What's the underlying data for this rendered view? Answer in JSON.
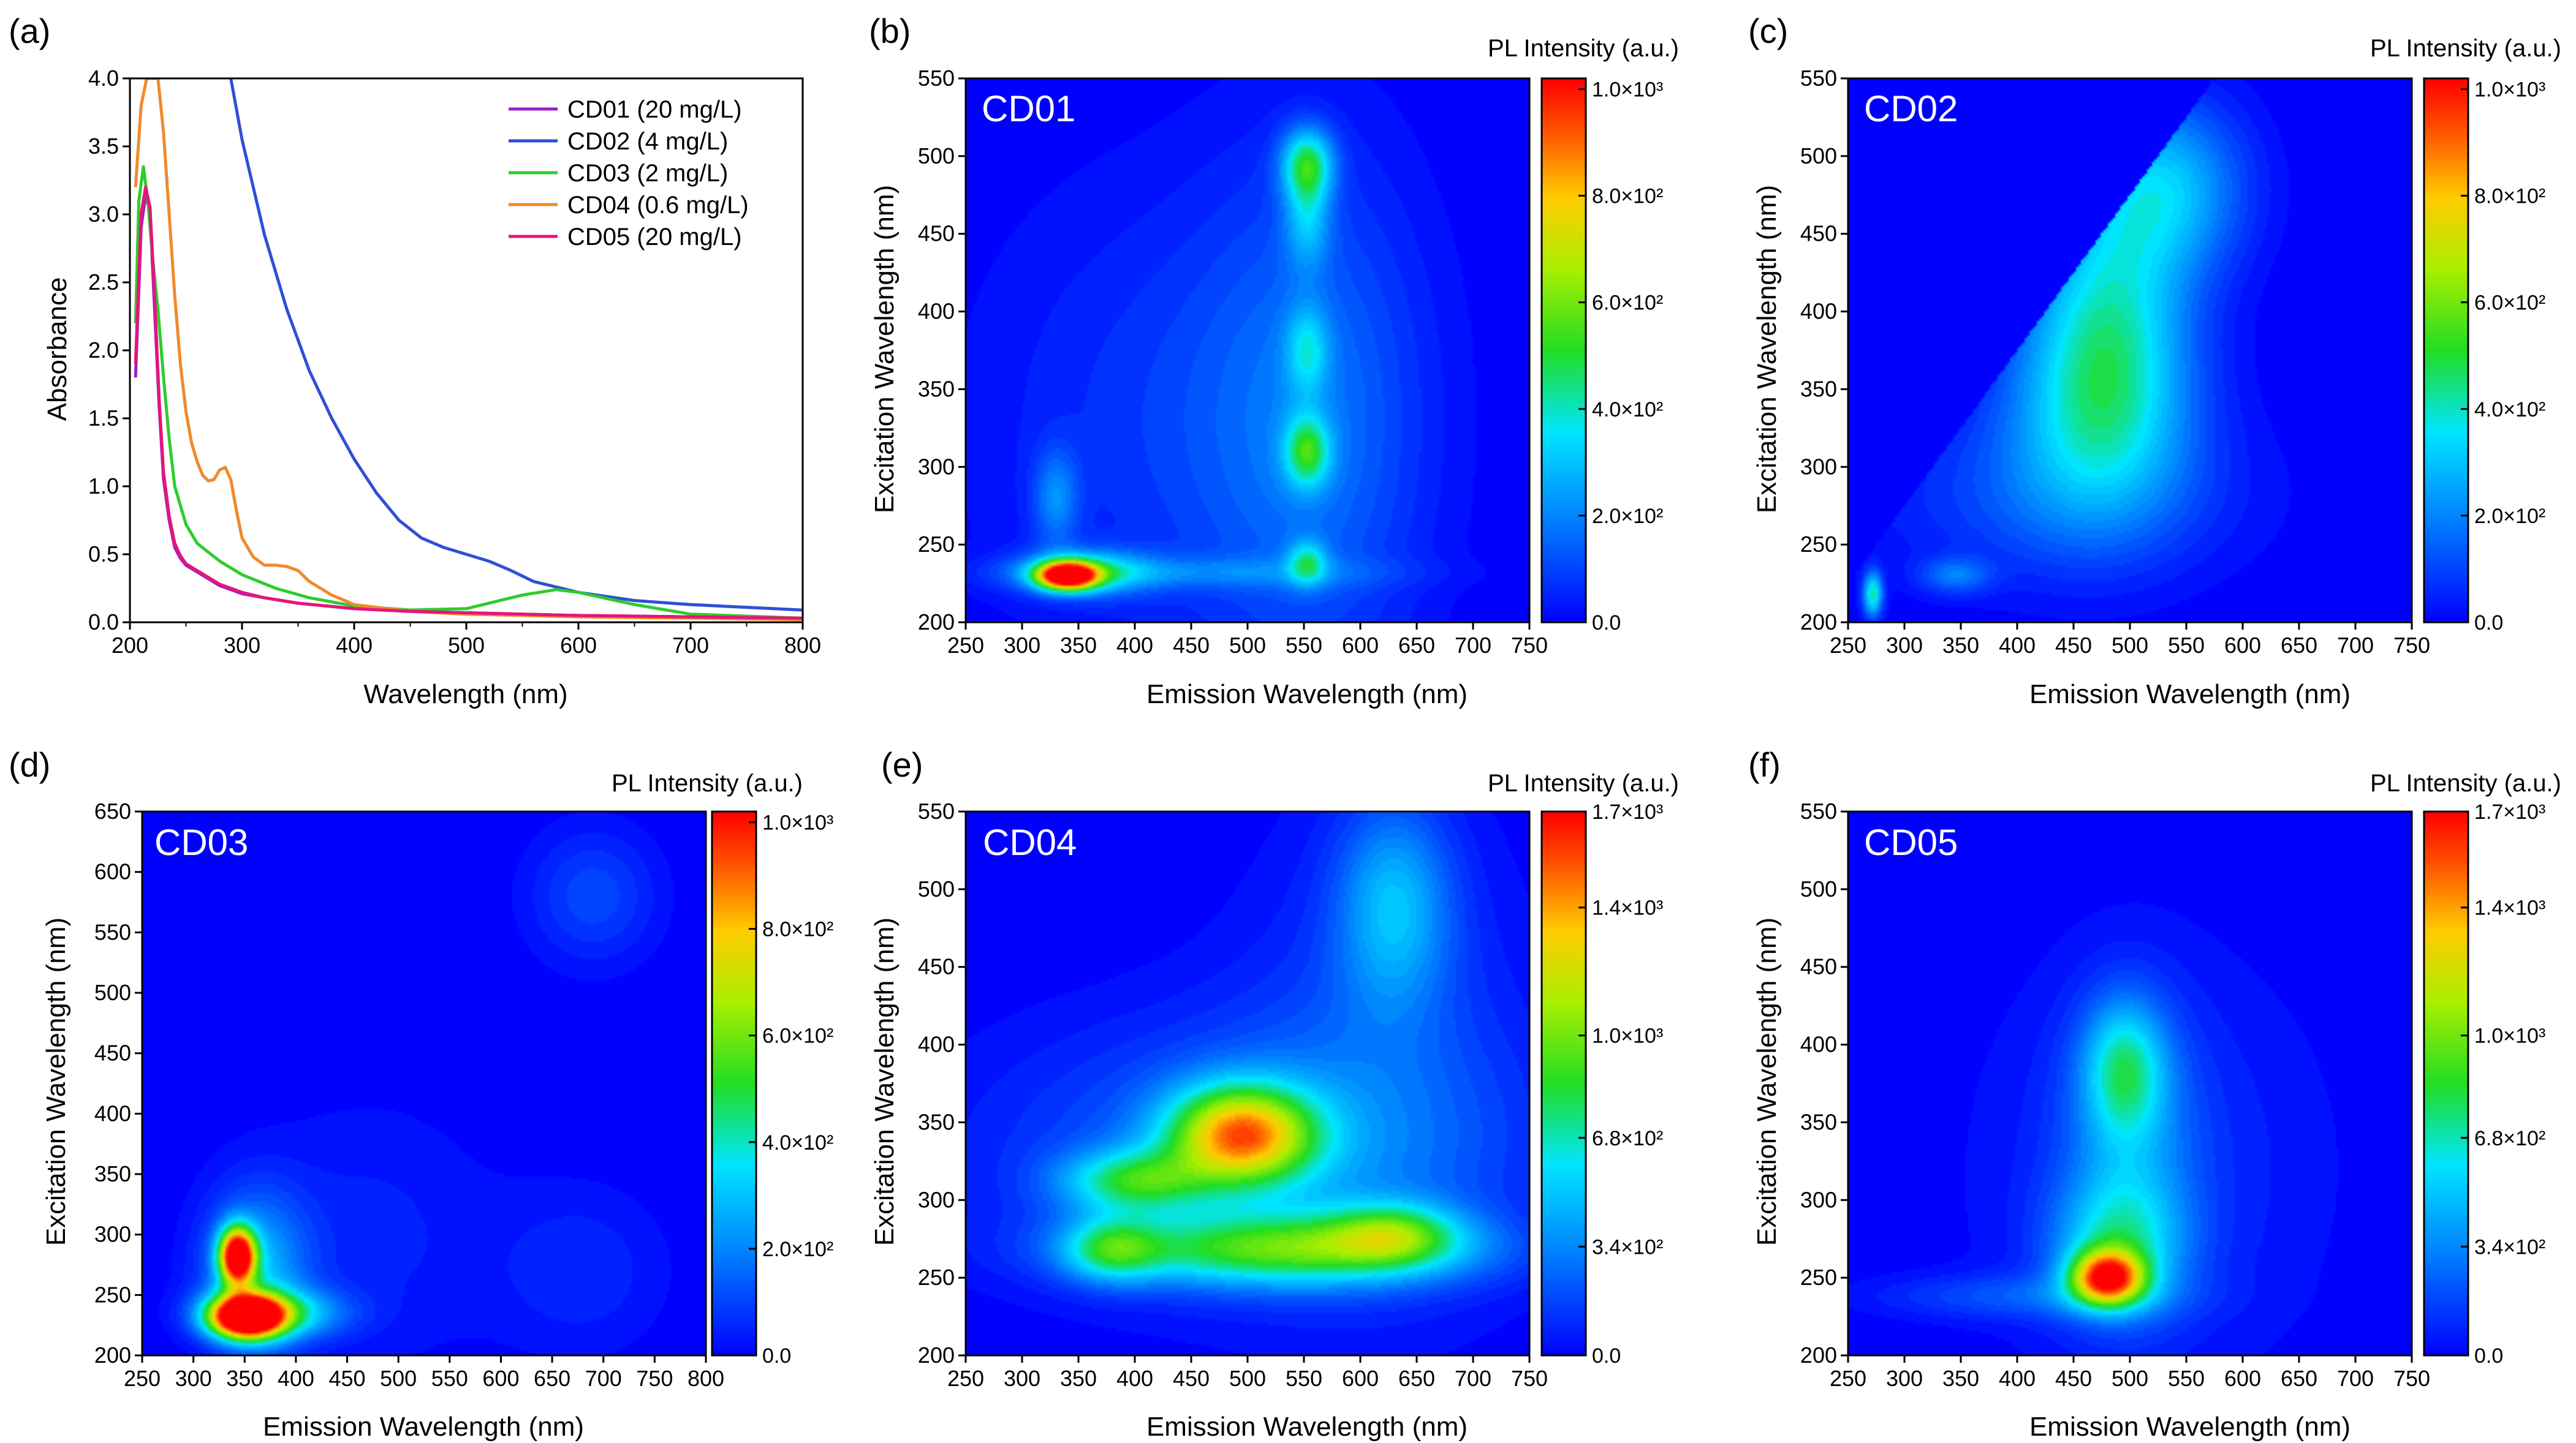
{
  "chart_data": [
    {
      "id": "a",
      "panel_label": "(a)",
      "type": "line",
      "title": "",
      "xlabel": "Wavelength (nm)",
      "ylabel": "Absorbance",
      "xlim": [
        200,
        800
      ],
      "ylim": [
        0,
        4.0
      ],
      "xticks": [
        200,
        300,
        400,
        500,
        600,
        700,
        800
      ],
      "yticks": [
        "0.0",
        "0.5",
        "1.0",
        "1.5",
        "2.0",
        "2.5",
        "3.0",
        "3.5",
        "4.0"
      ],
      "legend_position": "top-right",
      "series": [
        {
          "name": "CD01 (20 mg/L)",
          "color": "#9b1fc6",
          "x": [
            205,
            210,
            214,
            218,
            222,
            226,
            230,
            235,
            240,
            245,
            250,
            260,
            270,
            280,
            290,
            300,
            320,
            350,
            400,
            450,
            500,
            600,
            700,
            800
          ],
          "y": [
            1.8,
            2.9,
            3.15,
            3.0,
            2.3,
            1.6,
            1.05,
            0.75,
            0.55,
            0.47,
            0.42,
            0.37,
            0.32,
            0.27,
            0.24,
            0.21,
            0.18,
            0.14,
            0.1,
            0.08,
            0.07,
            0.05,
            0.04,
            0.03
          ]
        },
        {
          "name": "CD02 (4 mg/L)",
          "color": "#2e4fd6",
          "x": [
            290,
            300,
            320,
            340,
            360,
            380,
            400,
            420,
            440,
            460,
            480,
            500,
            520,
            540,
            560,
            600,
            650,
            700,
            750,
            800
          ],
          "y": [
            4.0,
            3.55,
            2.85,
            2.3,
            1.85,
            1.5,
            1.2,
            0.95,
            0.75,
            0.62,
            0.55,
            0.5,
            0.45,
            0.38,
            0.3,
            0.22,
            0.16,
            0.13,
            0.11,
            0.09
          ]
        },
        {
          "name": "CD03 (2 mg/L)",
          "color": "#2ecc2e",
          "x": [
            205,
            208,
            212,
            216,
            220,
            225,
            230,
            235,
            240,
            250,
            260,
            280,
            300,
            330,
            360,
            400,
            450,
            500,
            550,
            580,
            600,
            650,
            700,
            800
          ],
          "y": [
            2.2,
            3.1,
            3.35,
            3.1,
            2.7,
            2.3,
            1.8,
            1.35,
            1.0,
            0.72,
            0.58,
            0.45,
            0.35,
            0.25,
            0.18,
            0.12,
            0.09,
            0.1,
            0.2,
            0.24,
            0.22,
            0.13,
            0.06,
            0.03
          ]
        },
        {
          "name": "CD04 (0.6 mg/L)",
          "color": "#f08a2c",
          "x": [
            205,
            210,
            215,
            220,
            225,
            230,
            235,
            240,
            245,
            250,
            255,
            260,
            265,
            270,
            275,
            280,
            285,
            290,
            295,
            300,
            310,
            320,
            330,
            340,
            350,
            360,
            380,
            400,
            450,
            500,
            600,
            700,
            800
          ],
          "y": [
            3.2,
            3.8,
            4.0,
            4.0,
            4.0,
            3.6,
            3.0,
            2.4,
            1.9,
            1.55,
            1.32,
            1.18,
            1.08,
            1.04,
            1.05,
            1.12,
            1.14,
            1.05,
            0.82,
            0.62,
            0.48,
            0.42,
            0.42,
            0.41,
            0.38,
            0.3,
            0.2,
            0.13,
            0.08,
            0.06,
            0.04,
            0.03,
            0.02
          ]
        },
        {
          "name": "CD05 (20 mg/L)",
          "color": "#e5157a",
          "x": [
            205,
            210,
            214,
            218,
            222,
            226,
            230,
            235,
            240,
            245,
            250,
            260,
            270,
            280,
            290,
            300,
            320,
            350,
            400,
            450,
            500,
            600,
            700,
            800
          ],
          "y": [
            1.9,
            3.0,
            3.2,
            3.05,
            2.4,
            1.65,
            1.1,
            0.78,
            0.58,
            0.49,
            0.43,
            0.38,
            0.33,
            0.28,
            0.25,
            0.22,
            0.18,
            0.14,
            0.1,
            0.08,
            0.07,
            0.05,
            0.04,
            0.03
          ]
        }
      ]
    },
    {
      "id": "b",
      "panel_label": "(b)",
      "type": "heatmap",
      "sample": "CD01",
      "xlabel": "Emission Wavelength (nm)",
      "ylabel": "Excitation Wavelength (nm)",
      "xlim": [
        250,
        750
      ],
      "ylim": [
        200,
        550
      ],
      "xticks": [
        250,
        300,
        350,
        400,
        450,
        500,
        550,
        600,
        650,
        700,
        750
      ],
      "yticks": [
        200,
        250,
        300,
        350,
        400,
        450,
        500,
        550
      ],
      "colorbar": {
        "title": "PL Intensity (a.u.)",
        "max": 1020,
        "ticks": [
          {
            "value": 0,
            "label": "0.0"
          },
          {
            "value": 200,
            "label": "2.0×10²"
          },
          {
            "value": 400,
            "label": "4.0×10²"
          },
          {
            "value": 600,
            "label": "6.0×10²"
          },
          {
            "value": 800,
            "label": "8.0×10²"
          },
          {
            "value": 1000,
            "label": "1.0×10³"
          }
        ]
      },
      "peaks": [
        {
          "em": 340,
          "ex": 230,
          "intensity": 1100,
          "sx": 18,
          "sy": 6
        },
        {
          "em": 355,
          "ex": 232,
          "intensity": 350,
          "sx": 40,
          "sy": 10
        },
        {
          "em": 330,
          "ex": 280,
          "intensity": 180,
          "sx": 14,
          "sy": 22
        },
        {
          "em": 450,
          "ex": 232,
          "intensity": 120,
          "sx": 120,
          "sy": 7
        },
        {
          "em": 553,
          "ex": 495,
          "intensity": 420,
          "sx": 16,
          "sy": 16
        },
        {
          "em": 553,
          "ex": 460,
          "intensity": 220,
          "sx": 14,
          "sy": 22
        },
        {
          "em": 553,
          "ex": 310,
          "intensity": 380,
          "sx": 14,
          "sy": 16
        },
        {
          "em": 553,
          "ex": 375,
          "intensity": 220,
          "sx": 13,
          "sy": 20
        },
        {
          "em": 553,
          "ex": 238,
          "intensity": 300,
          "sx": 12,
          "sy": 10
        },
        {
          "em": 560,
          "ex": 330,
          "intensity": 150,
          "sx": 70,
          "sy": 120
        },
        {
          "em": 430,
          "ex": 330,
          "intensity": 90,
          "sx": 120,
          "sy": 110
        }
      ]
    },
    {
      "id": "c",
      "panel_label": "(c)",
      "type": "heatmap",
      "sample": "CD02",
      "xlabel": "Emission Wavelength (nm)",
      "ylabel": "Excitation Wavelength (nm)",
      "xlim": [
        250,
        750
      ],
      "ylim": [
        200,
        550
      ],
      "xticks": [
        250,
        300,
        350,
        400,
        450,
        500,
        550,
        600,
        650,
        700,
        750
      ],
      "yticks": [
        200,
        250,
        300,
        350,
        400,
        450,
        500,
        550
      ],
      "diagonal_cutoff": true,
      "colorbar": {
        "title": "PL Intensity (a.u.)",
        "max": 1020,
        "ticks": [
          {
            "value": 0,
            "label": "0.0"
          },
          {
            "value": 200,
            "label": "2.0×10²"
          },
          {
            "value": 400,
            "label": "4.0×10²"
          },
          {
            "value": 600,
            "label": "6.0×10²"
          },
          {
            "value": 800,
            "label": "8.0×10²"
          },
          {
            "value": 1000,
            "label": "1.0×10³"
          }
        ]
      },
      "peaks": [
        {
          "em": 480,
          "ex": 390,
          "intensity": 340,
          "sx": 50,
          "sy": 60
        },
        {
          "em": 530,
          "ex": 480,
          "intensity": 300,
          "sx": 50,
          "sy": 40
        },
        {
          "em": 470,
          "ex": 330,
          "intensity": 220,
          "sx": 60,
          "sy": 50
        },
        {
          "em": 272,
          "ex": 218,
          "intensity": 420,
          "sx": 6,
          "sy": 10
        },
        {
          "em": 345,
          "ex": 230,
          "intensity": 170,
          "sx": 22,
          "sy": 8
        },
        {
          "em": 430,
          "ex": 280,
          "intensity": 110,
          "sx": 120,
          "sy": 40
        }
      ]
    },
    {
      "id": "d",
      "panel_label": "(d)",
      "type": "heatmap",
      "sample": "CD03",
      "xlabel": "Emission Wavelength (nm)",
      "ylabel": "Excitation Wavelength (nm)",
      "xlim": [
        250,
        800
      ],
      "ylim": [
        200,
        650
      ],
      "xticks": [
        250,
        300,
        350,
        400,
        450,
        500,
        550,
        600,
        650,
        700,
        750,
        800
      ],
      "yticks": [
        200,
        250,
        300,
        350,
        400,
        450,
        500,
        550,
        600,
        650
      ],
      "colorbar": {
        "title": "PL Intensity (a.u.)",
        "max": 1020,
        "ticks": [
          {
            "value": 0,
            "label": "0.0"
          },
          {
            "value": 200,
            "label": "2.0×10²"
          },
          {
            "value": 400,
            "label": "4.0×10²"
          },
          {
            "value": 600,
            "label": "6.0×10²"
          },
          {
            "value": 800,
            "label": "8.0×10²"
          },
          {
            "value": 1000,
            "label": "1.0×10³"
          }
        ]
      },
      "peaks": [
        {
          "em": 352,
          "ex": 232,
          "intensity": 1300,
          "sx": 24,
          "sy": 12
        },
        {
          "em": 343,
          "ex": 282,
          "intensity": 1150,
          "sx": 12,
          "sy": 16
        },
        {
          "em": 380,
          "ex": 235,
          "intensity": 350,
          "sx": 45,
          "sy": 14
        },
        {
          "em": 360,
          "ex": 270,
          "intensity": 280,
          "sx": 35,
          "sy": 45
        },
        {
          "em": 690,
          "ex": 580,
          "intensity": 120,
          "sx": 45,
          "sy": 40
        },
        {
          "em": 680,
          "ex": 270,
          "intensity": 70,
          "sx": 60,
          "sy": 50
        },
        {
          "em": 470,
          "ex": 300,
          "intensity": 60,
          "sx": 90,
          "sy": 80
        }
      ]
    },
    {
      "id": "e",
      "panel_label": "(e)",
      "type": "heatmap",
      "sample": "CD04",
      "xlabel": "Emission Wavelength (nm)",
      "ylabel": "Excitation Wavelength (nm)",
      "xlim": [
        250,
        750
      ],
      "ylim": [
        200,
        550
      ],
      "xticks": [
        250,
        300,
        350,
        400,
        450,
        500,
        550,
        600,
        650,
        700,
        750
      ],
      "yticks": [
        200,
        250,
        300,
        350,
        400,
        450,
        500,
        550
      ],
      "colorbar": {
        "title": "PL Intensity (a.u.)",
        "max": 1700,
        "ticks": [
          {
            "value": 0,
            "label": "0.0"
          },
          {
            "value": 340,
            "label": "3.4×10²"
          },
          {
            "value": 680,
            "label": "6.8×10²"
          },
          {
            "value": 1000,
            "label": "1.0×10³"
          },
          {
            "value": 1400,
            "label": "1.4×10³"
          },
          {
            "value": 1700,
            "label": "1.7×10³"
          }
        ]
      },
      "peaks": [
        {
          "em": 495,
          "ex": 342,
          "intensity": 1250,
          "sx": 45,
          "sy": 22
        },
        {
          "em": 400,
          "ex": 312,
          "intensity": 650,
          "sx": 45,
          "sy": 14
        },
        {
          "em": 530,
          "ex": 268,
          "intensity": 800,
          "sx": 110,
          "sy": 16
        },
        {
          "em": 380,
          "ex": 268,
          "intensity": 550,
          "sx": 30,
          "sy": 14
        },
        {
          "em": 630,
          "ex": 278,
          "intensity": 550,
          "sx": 40,
          "sy": 14
        },
        {
          "em": 630,
          "ex": 490,
          "intensity": 420,
          "sx": 35,
          "sy": 45
        },
        {
          "em": 500,
          "ex": 330,
          "intensity": 300,
          "sx": 160,
          "sy": 60
        },
        {
          "em": 620,
          "ex": 400,
          "intensity": 160,
          "sx": 90,
          "sy": 110
        }
      ]
    },
    {
      "id": "f",
      "panel_label": "(f)",
      "type": "heatmap",
      "sample": "CD05",
      "xlabel": "Emission Wavelength (nm)",
      "ylabel": "Excitation Wavelength (nm)",
      "xlim": [
        250,
        750
      ],
      "ylim": [
        200,
        550
      ],
      "xticks": [
        250,
        300,
        350,
        400,
        450,
        500,
        550,
        600,
        650,
        700,
        750
      ],
      "yticks": [
        200,
        250,
        300,
        350,
        400,
        450,
        500,
        550
      ],
      "colorbar": {
        "title": "PL Intensity (a.u.)",
        "max": 1700,
        "ticks": [
          {
            "value": 0,
            "label": "0.0"
          },
          {
            "value": 340,
            "label": "3.4×10²"
          },
          {
            "value": 680,
            "label": "6.8×10²"
          },
          {
            "value": 1000,
            "label": "1.0×10³"
          },
          {
            "value": 1400,
            "label": "1.4×10³"
          },
          {
            "value": 1700,
            "label": "1.7×10³"
          }
        ]
      },
      "peaks": [
        {
          "em": 480,
          "ex": 250,
          "intensity": 1350,
          "sx": 22,
          "sy": 12
        },
        {
          "em": 490,
          "ex": 270,
          "intensity": 500,
          "sx": 40,
          "sy": 30
        },
        {
          "em": 495,
          "ex": 385,
          "intensity": 520,
          "sx": 25,
          "sy": 30
        },
        {
          "em": 500,
          "ex": 340,
          "intensity": 280,
          "sx": 40,
          "sy": 60
        },
        {
          "em": 400,
          "ex": 238,
          "intensity": 200,
          "sx": 90,
          "sy": 10
        },
        {
          "em": 520,
          "ex": 320,
          "intensity": 130,
          "sx": 110,
          "sy": 100
        }
      ]
    }
  ]
}
